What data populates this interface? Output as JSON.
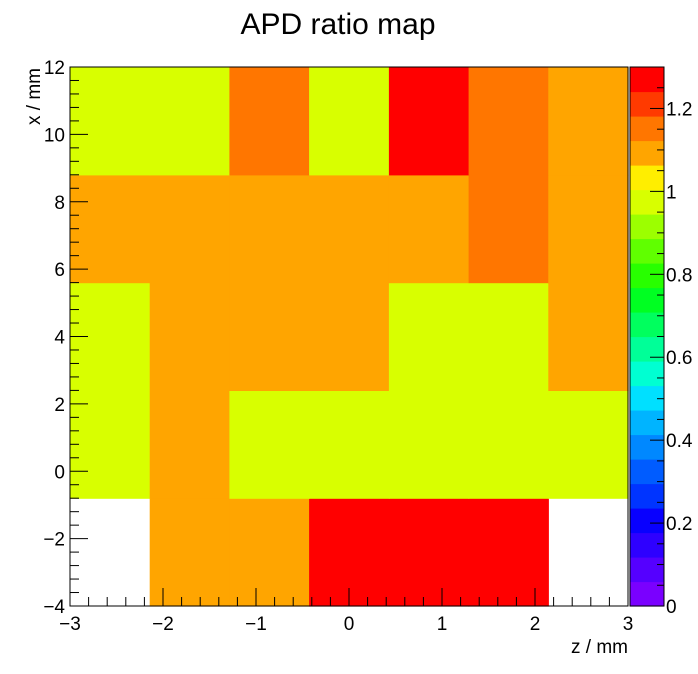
{
  "chart_data": {
    "type": "heatmap",
    "title": "APD ratio map",
    "xlabel": "z / mm",
    "ylabel": "x / mm",
    "xlim": [
      -3,
      3
    ],
    "ylim": [
      -4,
      12
    ],
    "x_ticks": [
      -3,
      -2,
      -1,
      0,
      1,
      2,
      3
    ],
    "x_tick_labels": [
      "−3",
      "−2",
      "−1",
      "0",
      "1",
      "2",
      "3"
    ],
    "y_ticks": [
      -4,
      -2,
      0,
      2,
      4,
      6,
      8,
      10,
      12
    ],
    "y_tick_labels": [
      "−4",
      "−2",
      "0",
      "2",
      "4",
      "6",
      "8",
      "10",
      "12"
    ],
    "x_bin_edges": [
      -3.0,
      -2.143,
      -1.286,
      -0.429,
      0.429,
      1.286,
      2.143,
      3.0
    ],
    "y_bin_edges": [
      -4.0,
      -0.8,
      2.4,
      5.6,
      8.8,
      12.0
    ],
    "z_rows_bottom_to_top": [
      [
        null,
        1.1,
        1.1,
        1.25,
        1.3,
        1.3,
        null
      ],
      [
        1.0,
        1.1,
        1.0,
        1.0,
        1.0,
        1.0,
        1.0
      ],
      [
        1.0,
        1.1,
        1.1,
        1.1,
        1.0,
        1.0,
        1.1
      ],
      [
        1.1,
        1.1,
        1.1,
        1.1,
        1.1,
        1.15,
        1.1
      ],
      [
        1.0,
        1.0,
        1.15,
        1.0,
        1.3,
        1.15,
        1.1
      ]
    ],
    "zlim": [
      0,
      1.3
    ],
    "colorbar_ticks": [
      0,
      0.2,
      0.4,
      0.6,
      0.8,
      1,
      1.2
    ],
    "colorbar_tick_labels": [
      "0",
      "0.2",
      "0.4",
      "0.6",
      "0.8",
      "1",
      "1.2"
    ],
    "palette": [
      "#7a00ff",
      "#5500ff",
      "#2e00ff",
      "#0800ff",
      "#0034ff",
      "#005cff",
      "#0088ff",
      "#00b4ff",
      "#00e0ff",
      "#00ffd2",
      "#00ff98",
      "#00ff5e",
      "#00ff22",
      "#28ff00",
      "#60ff00",
      "#9cff00",
      "#d8ff00",
      "#ffee00",
      "#ffa500",
      "#ff7600",
      "#ff3a00",
      "#ff0000"
    ]
  }
}
